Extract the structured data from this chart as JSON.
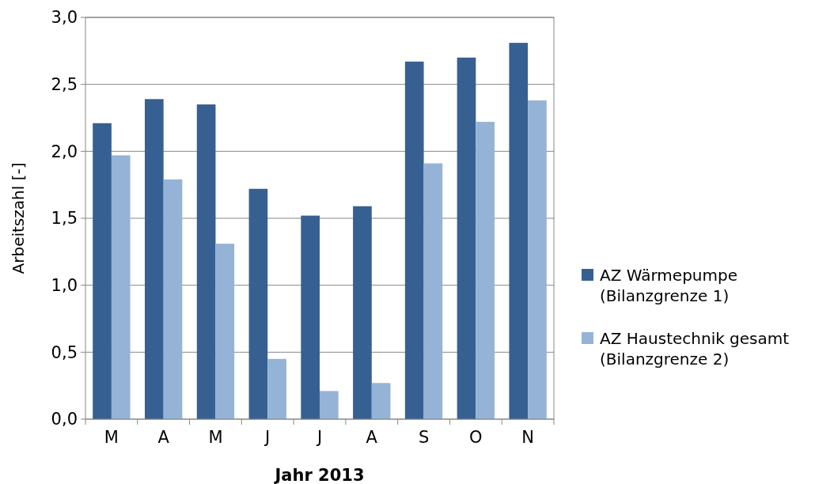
{
  "chart_data": {
    "type": "bar",
    "xlabel": "Jahr 2013",
    "ylabel": "Arbeitszahl [-]",
    "categories": [
      "M",
      "A",
      "M",
      "J",
      "J",
      "A",
      "S",
      "O",
      "N"
    ],
    "series": [
      {
        "name": "AZ Wärmepumpe\n(Bilanzgrenze 1)",
        "color": "#376092",
        "values": [
          2.21,
          2.39,
          2.35,
          1.72,
          1.52,
          1.59,
          2.67,
          2.7,
          2.81
        ]
      },
      {
        "name": "AZ Haustechnik gesamt\n(Bilanzgrenze 2)",
        "color": "#95b3d7",
        "values": [
          1.97,
          1.79,
          1.31,
          0.45,
          0.21,
          0.27,
          1.91,
          2.22,
          2.38
        ]
      }
    ],
    "ylim": [
      0,
      3
    ],
    "yticks": [
      {
        "value": 0,
        "label": "0,0"
      },
      {
        "value": 0.5,
        "label": "0,5"
      },
      {
        "value": 1,
        "label": "1,0"
      },
      {
        "value": 1.5,
        "label": "1,5"
      },
      {
        "value": 2,
        "label": "2,0"
      },
      {
        "value": 2.5,
        "label": "2,5"
      },
      {
        "value": 3,
        "label": "3,0"
      }
    ],
    "grid": "y",
    "legend": "right"
  }
}
